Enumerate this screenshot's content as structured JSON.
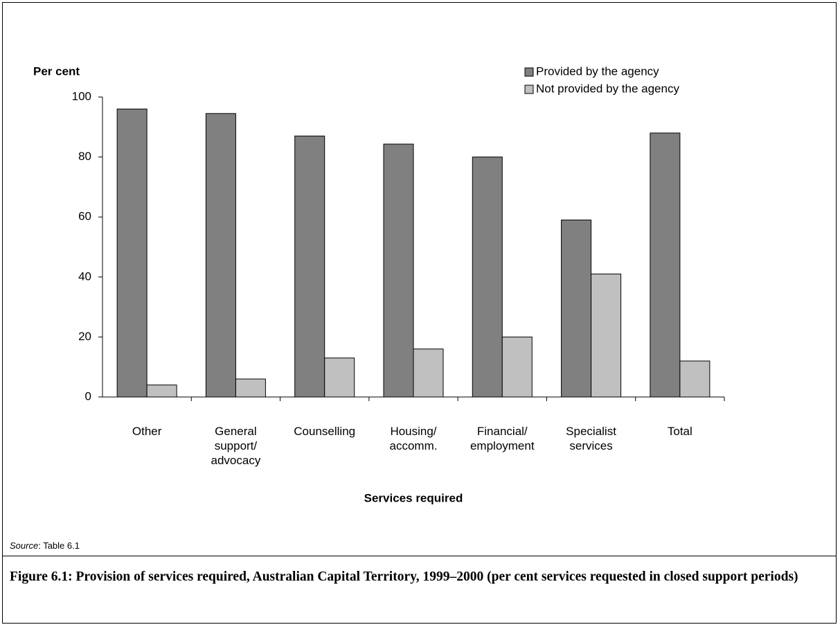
{
  "chart_data": {
    "type": "bar",
    "y_label": "Per cent",
    "x_label": "Services required",
    "categories": [
      "Other",
      "General support/ advocacy",
      "Counselling",
      "Housing/ accomm.",
      "Financial/ employment",
      "Specialist services",
      "Total"
    ],
    "series": [
      {
        "name": "Provided by the agency",
        "color": "#808080",
        "values": [
          96,
          94.5,
          87,
          84.3,
          80,
          59,
          88
        ]
      },
      {
        "name": "Not provided by the agency",
        "color": "#c0c0c0",
        "values": [
          4,
          6,
          13,
          16,
          20,
          41,
          12
        ]
      }
    ],
    "ylim": [
      0,
      100
    ],
    "yticks": [
      0,
      20,
      40,
      60,
      80,
      100
    ],
    "grid": false,
    "legend": "top-right"
  },
  "source": {
    "label": "Source",
    "text": ": Table 6.1"
  },
  "caption": "Figure 6.1: Provision of services required, Australian Capital Territory, 1999–2000 (per cent services requested in closed support periods)"
}
